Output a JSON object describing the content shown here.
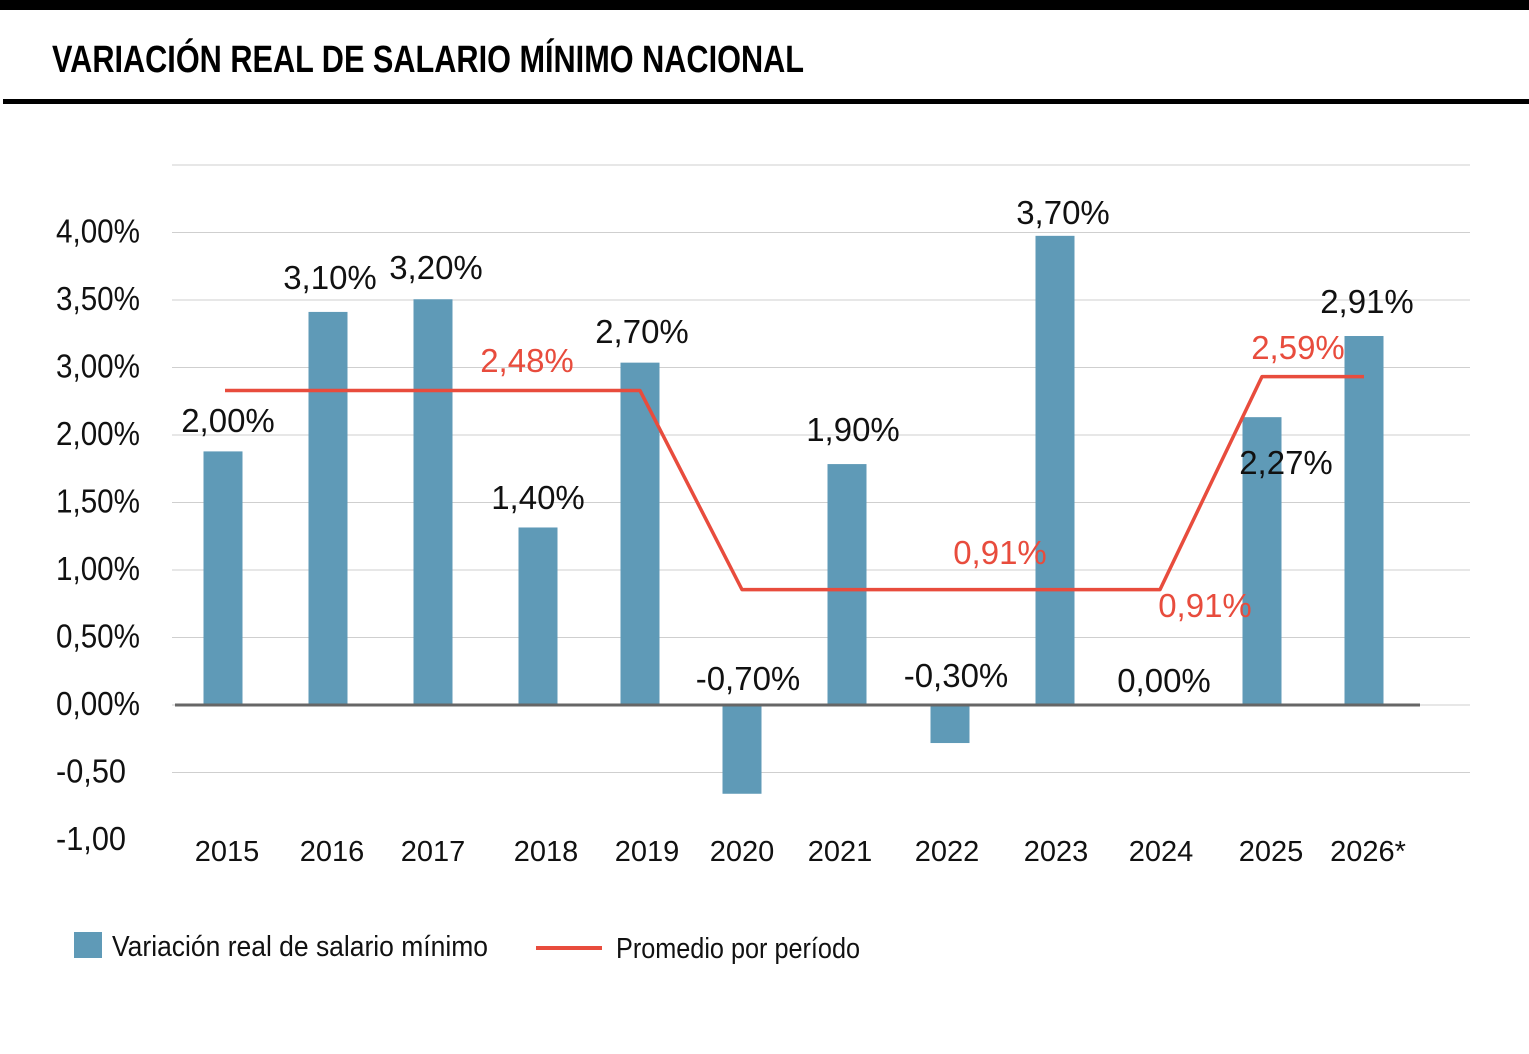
{
  "chart_data": {
    "type": "bar",
    "title": "VARIACIÓN REAL DE SALARIO MÍNIMO NACIONAL",
    "categories": [
      "2015",
      "2016",
      "2017",
      "2018",
      "2019",
      "2020",
      "2021",
      "2022",
      "2023",
      "2024",
      "2025",
      "2026*"
    ],
    "y_tick_labels": [
      "4,00%",
      "3,50%",
      "3,00%",
      "2,00%",
      "1,50%",
      "1,00%",
      "0,50%",
      "0,00%",
      "-0,50",
      "-1,00"
    ],
    "grid": true,
    "legend_placement": "bottom-left",
    "series": [
      {
        "name": "Variación real de salario mínimo",
        "type": "bar",
        "color": "#5f9ab7",
        "values": [
          2.0,
          3.1,
          3.2,
          1.4,
          2.7,
          -0.7,
          1.9,
          -0.3,
          3.7,
          0.0,
          2.27,
          2.91
        ],
        "labels": [
          "2,00%",
          "3,10%",
          "3,20%",
          "1,40%",
          "2,70%",
          "-0,70%",
          "1,90%",
          "-0,30%",
          "3,70%",
          "0,00%",
          "2,27%",
          "2,91%"
        ]
      },
      {
        "name": "Promedio por período",
        "type": "line",
        "color": "#e84c3d",
        "values": [
          2.48,
          2.48,
          2.48,
          2.48,
          2.48,
          0.91,
          0.91,
          0.91,
          0.91,
          0.91,
          2.59,
          2.59
        ],
        "period_labels": [
          "2,48%",
          "0,91%",
          "0,91%",
          "2,59%"
        ]
      }
    ]
  }
}
